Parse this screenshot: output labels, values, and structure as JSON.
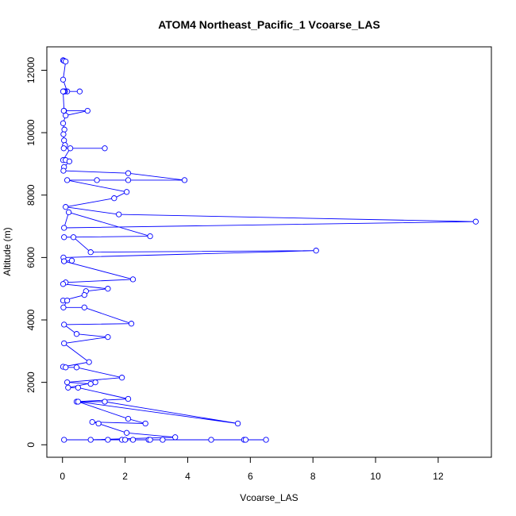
{
  "chart_data": {
    "type": "line",
    "title": "ATOM4 Northeast_Pacific_1 Vcoarse_LAS",
    "xlabel": "Vcoarse_LAS",
    "ylabel": "Altitude (m)",
    "xlim": [
      -0.5,
      13.7
    ],
    "ylim": [
      -400,
      12750
    ],
    "x_ticks": [
      0,
      2,
      4,
      6,
      8,
      10,
      12
    ],
    "y_ticks": [
      0,
      2000,
      4000,
      6000,
      8000,
      10000,
      12000
    ],
    "x_tick_labels": [
      "0",
      "2",
      "4",
      "6",
      "8",
      "10",
      "12"
    ],
    "y_tick_labels": [
      "0",
      "2000",
      "4000",
      "6000",
      "8000",
      "10000",
      "12000"
    ],
    "color": "#0000ff",
    "marker": "open-circle",
    "grid": false,
    "legend": "none",
    "series": [
      {
        "x": [
          0.02,
          0.05,
          0.1,
          0.02,
          0.15,
          0.03,
          0.08,
          0.05,
          0.55,
          0.02,
          0.05,
          0.04,
          0.8,
          0.1,
          0.02,
          0.06,
          0.03,
          0.05,
          0.08,
          0.04,
          1.35,
          0.25,
          0.02,
          0.1,
          0.22,
          0.05,
          0.03,
          2.1,
          3.9,
          1.1,
          2.1,
          0.15,
          2.05,
          1.65,
          0.1,
          1.8,
          13.2,
          0.05,
          0.2,
          2.8,
          0.05,
          0.35,
          0.9,
          8.1,
          0.03,
          0.05,
          0.3,
          0.05,
          2.25,
          0.1,
          0.02,
          1.45,
          0.75,
          0.7,
          0.02,
          0.15,
          0.03,
          0.7,
          2.2,
          0.05,
          0.45,
          1.45,
          0.05,
          0.85,
          0.02,
          0.1,
          0.45,
          1.9,
          0.15,
          0.9,
          1.05,
          0.18,
          0.5,
          2.1,
          0.45,
          1.35,
          5.6,
          0.5,
          2.1,
          2.65,
          0.95,
          1.15,
          2.05,
          3.6,
          0.9,
          1.45,
          2.25,
          2.75,
          4.75,
          1.9,
          2.8,
          5.8,
          0.05,
          6.5,
          5.85,
          2.0,
          3.2
        ]
      }
    ],
    "point_altitudes": [
      12320,
      12300,
      12280,
      11700,
      11320,
      11320,
      11320,
      11320,
      11320,
      11320,
      10700,
      10700,
      10700,
      10550,
      10300,
      10100,
      9950,
      9750,
      9600,
      9500,
      9500,
      9500,
      9120,
      9120,
      9080,
      8900,
      8780,
      8700,
      8480,
      8480,
      8480,
      8480,
      8100,
      7900,
      7620,
      7380,
      7150,
      6950,
      7450,
      6680,
      6650,
      6650,
      6170,
      6220,
      6000,
      5880,
      5900,
      5880,
      5300,
      5200,
      5150,
      5000,
      4920,
      4800,
      4620,
      4620,
      4400,
      4400,
      3880,
      3850,
      3550,
      3450,
      3250,
      2650,
      2500,
      2480,
      2480,
      2150,
      2000,
      1950,
      2000,
      1830,
      1830,
      1470,
      1380,
      1380,
      680,
      1380,
      830,
      680,
      730,
      680,
      380,
      240,
      160,
      160,
      160,
      160,
      160,
      160,
      160,
      160,
      160,
      160,
      160,
      160,
      160
    ]
  }
}
